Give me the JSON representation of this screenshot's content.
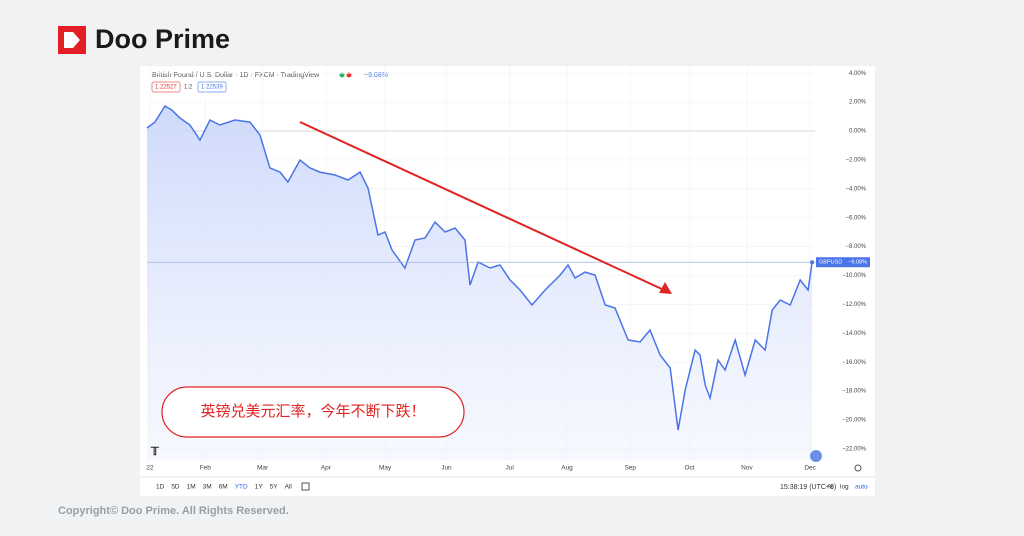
{
  "brand": "Doo Prime",
  "copyright": "Copyright© Doo Prime. All Rights Reserved.",
  "chart_data": {
    "type": "line",
    "title": "British Pound / U.S. Dollar · 1D · FXCM · TradingView",
    "change": "−9.08%",
    "prices": [
      "1.22527",
      "1:2",
      "1.22539"
    ],
    "annotation": "英镑兑美元汇率，今年不断下跌！",
    "last_tag": {
      "name": "GBPUSD",
      "label": "−9.08%"
    },
    "ranges": [
      "1D",
      "5D",
      "1M",
      "3M",
      "6M",
      "YTD",
      "1Y",
      "5Y",
      "All"
    ],
    "clock": "15:38:19 (UTC+8)",
    "scale_buttons": [
      "%",
      "log",
      "auto"
    ],
    "xlim": [
      -2,
      339
    ],
    "xticks": [
      {
        "value": 0,
        "label": "22"
      },
      {
        "value": 28,
        "label": "Feb"
      },
      {
        "value": 57,
        "label": "Mar"
      },
      {
        "value": 89,
        "label": "Apr"
      },
      {
        "value": 119,
        "label": "May"
      },
      {
        "value": 150,
        "label": "Jun"
      },
      {
        "value": 182,
        "label": "Jul"
      },
      {
        "value": 211,
        "label": "Aug"
      },
      {
        "value": 243,
        "label": "Sep"
      },
      {
        "value": 273,
        "label": "Oct"
      },
      {
        "value": 302,
        "label": "Nov"
      },
      {
        "value": 334,
        "label": "Dec"
      }
    ],
    "ylim": [
      -22.8,
      4.5
    ],
    "yticks": [
      {
        "value": 4,
        "label": "4.00%"
      },
      {
        "value": 2,
        "label": "2.00%"
      },
      {
        "value": 0,
        "label": "0.00%"
      },
      {
        "value": -2,
        "label": "−2.00%"
      },
      {
        "value": -4,
        "label": "−4.00%"
      },
      {
        "value": -6,
        "label": "−6.00%"
      },
      {
        "value": -8,
        "label": "−8.00%"
      },
      {
        "value": -10,
        "label": "−10.00%"
      },
      {
        "value": -12,
        "label": "−12.00%"
      },
      {
        "value": -14,
        "label": "−14.00%"
      },
      {
        "value": -16,
        "label": "−16.00%"
      },
      {
        "value": -18,
        "label": "−18.00%"
      },
      {
        "value": -20,
        "label": "−20.00%"
      },
      {
        "value": -22,
        "label": "−22.00%"
      }
    ],
    "grid": true,
    "series": [
      {
        "name": "GBPUSD",
        "color": "#4a74e8",
        "x": [
          -1.5,
          2.5,
          7.6,
          11.1,
          15.2,
          20.2,
          25.3,
          30.4,
          35.4,
          43,
          50.6,
          55.7,
          60.7,
          65.8,
          69.8,
          75.9,
          81,
          86,
          93.6,
          100.2,
          106.3,
          110.3,
          115.4,
          118.9,
          122.5,
          129,
          134.1,
          139.2,
          144.2,
          149.3,
          154.4,
          159.4,
          161.9,
          166,
          172.1,
          177.1,
          182.2,
          187.2,
          193.3,
          199.9,
          207.5,
          211.5,
          215.1,
          220.1,
          225.2,
          230.3,
          235.3,
          241.9,
          248,
          253,
          258.1,
          263.2,
          267.2,
          270.8,
          275.8,
          278.3,
          280.9,
          283.4,
          287.4,
          291,
          296.1,
          301.1,
          306.2,
          311.2,
          314.8,
          318.8,
          323.9,
          329,
          333,
          335
        ],
        "values": [
          0.21,
          0.62,
          1.73,
          1.45,
          0.9,
          0.42,
          -0.62,
          0.76,
          0.42,
          0.76,
          0.62,
          -0.28,
          -2.56,
          -2.84,
          -3.53,
          -2.01,
          -2.56,
          -2.84,
          -3.04,
          -3.39,
          -2.84,
          -3.94,
          -7.2,
          -6.99,
          -8.24,
          -9.48,
          -7.54,
          -7.4,
          -6.3,
          -6.99,
          -6.71,
          -7.54,
          -10.66,
          -9.07,
          -9.48,
          -9.27,
          -10.31,
          -11.0,
          -12.04,
          -11.0,
          -9.97,
          -9.27,
          -10.17,
          -9.76,
          -9.97,
          -12.04,
          -12.25,
          -14.46,
          -14.6,
          -13.77,
          -15.5,
          -16.4,
          -20.69,
          -17.92,
          -15.16,
          -15.5,
          -17.58,
          -18.48,
          -15.85,
          -16.54,
          -14.46,
          -16.89,
          -14.46,
          -15.16,
          -12.39,
          -11.7,
          -12.04,
          -10.31,
          -11.0,
          -9.08
        ]
      }
    ]
  }
}
